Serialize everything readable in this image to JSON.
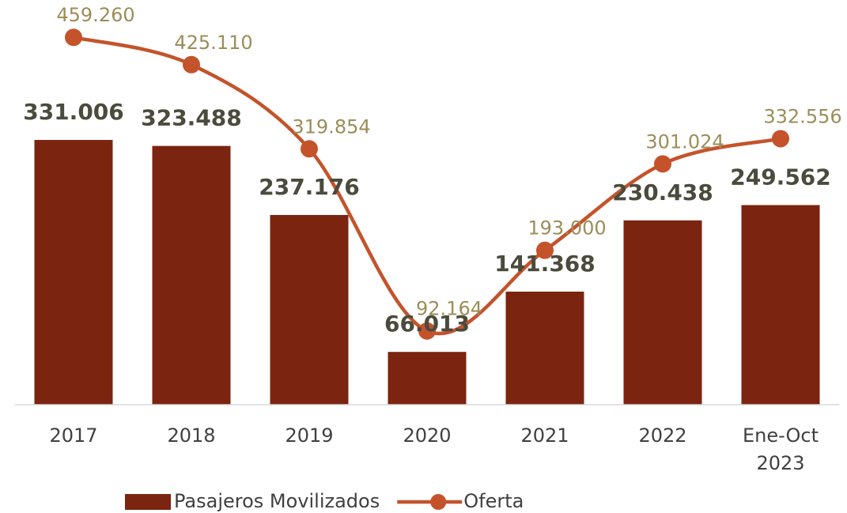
{
  "chart_data": {
    "type": "bar_line",
    "categories": [
      "2017",
      "2018",
      "2019",
      "2020",
      "2021",
      "2022",
      "Ene-Oct 2023"
    ],
    "series": [
      {
        "name": "Pasajeros Movilizados",
        "type": "bar",
        "color": "#7b2410",
        "values": [
          331006,
          323488,
          237176,
          66013,
          141368,
          230438,
          249562
        ],
        "value_labels": [
          "331.006",
          "323.488",
          "237.176",
          "66.013",
          "141.368",
          "230.438",
          "249.562"
        ]
      },
      {
        "name": "Oferta",
        "type": "line",
        "color": "#c4532b",
        "values": [
          459260,
          425110,
          319854,
          92164,
          193000,
          301024,
          332556
        ],
        "value_labels": [
          "459.260",
          "425.110",
          "319.854",
          "92.164",
          "193.000",
          "301.024",
          "332.556"
        ]
      }
    ],
    "ylim": [
      0,
      500000
    ],
    "legend": "bottom"
  }
}
